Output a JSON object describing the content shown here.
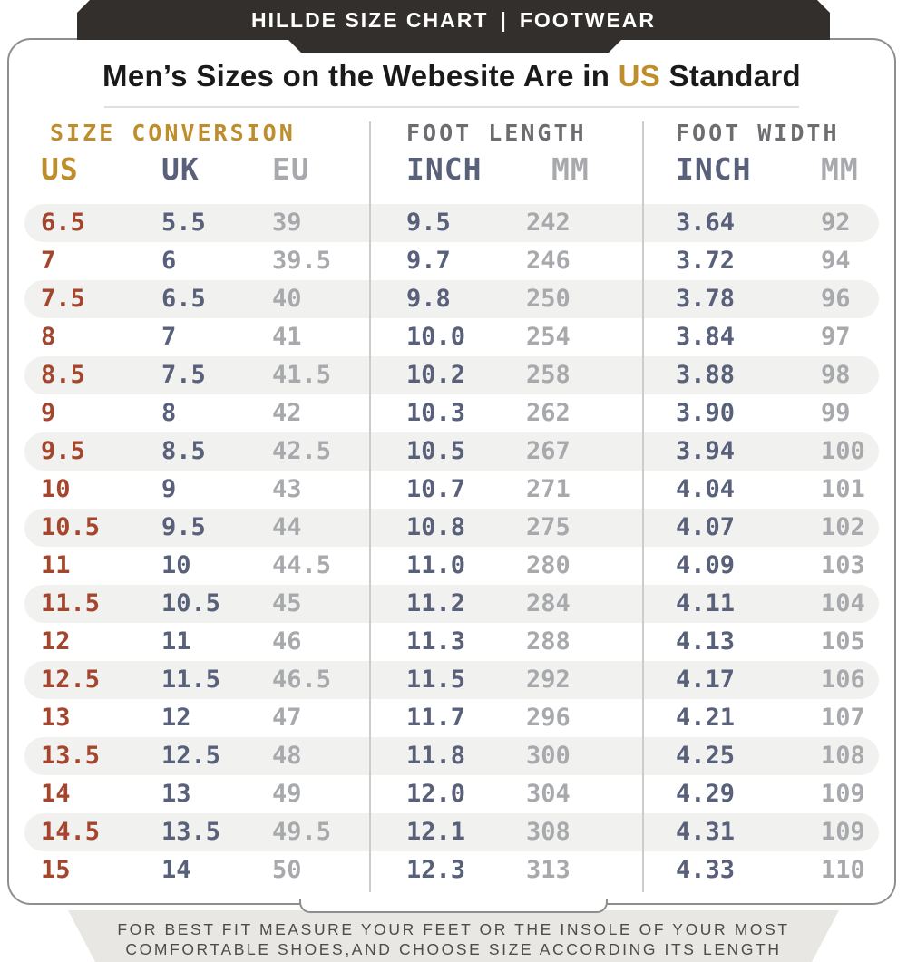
{
  "banner": {
    "title_left": "HILLDE SIZE CHART",
    "separator": "|",
    "title_right": "FOOTWEAR"
  },
  "heading": {
    "prefix": "Men’s Sizes on the Webesite Are in",
    "highlight": " US ",
    "suffix": "Standard"
  },
  "table": {
    "groups": [
      {
        "label": "SIZE CONVERSION"
      },
      {
        "label": "FOOT LENGTH"
      },
      {
        "label": "FOOT WIDTH"
      }
    ],
    "columns": [
      "US",
      "UK",
      "EU",
      "INCH",
      "MM",
      "INCH",
      "MM"
    ],
    "rows": [
      [
        "6.5",
        "5.5",
        "39",
        "9.5",
        "242",
        "3.64",
        "92"
      ],
      [
        "7",
        "6",
        "39.5",
        "9.7",
        "246",
        "3.72",
        "94"
      ],
      [
        "7.5",
        "6.5",
        "40",
        "9.8",
        "250",
        "3.78",
        "96"
      ],
      [
        "8",
        "7",
        "41",
        "10.0",
        "254",
        "3.84",
        "97"
      ],
      [
        "8.5",
        "7.5",
        "41.5",
        "10.2",
        "258",
        "3.88",
        "98"
      ],
      [
        "9",
        "8",
        "42",
        "10.3",
        "262",
        "3.90",
        "99"
      ],
      [
        "9.5",
        "8.5",
        "42.5",
        "10.5",
        "267",
        "3.94",
        "100"
      ],
      [
        "10",
        "9",
        "43",
        "10.7",
        "271",
        "4.04",
        "101"
      ],
      [
        "10.5",
        "9.5",
        "44",
        "10.8",
        "275",
        "4.07",
        "102"
      ],
      [
        "11",
        "10",
        "44.5",
        "11.0",
        "280",
        "4.09",
        "103"
      ],
      [
        "11.5",
        "10.5",
        "45",
        "11.2",
        "284",
        "4.11",
        "104"
      ],
      [
        "12",
        "11",
        "46",
        "11.3",
        "288",
        "4.13",
        "105"
      ],
      [
        "12.5",
        "11.5",
        "46.5",
        "11.5",
        "292",
        "4.17",
        "106"
      ],
      [
        "13",
        "12",
        "47",
        "11.7",
        "296",
        "4.21",
        "107"
      ],
      [
        "13.5",
        "12.5",
        "48",
        "11.8",
        "300",
        "4.25",
        "108"
      ],
      [
        "14",
        "13",
        "49",
        "12.0",
        "304",
        "4.29",
        "109"
      ],
      [
        "14.5",
        "13.5",
        "49.5",
        "12.1",
        "308",
        "4.31",
        "109"
      ],
      [
        "15",
        "14",
        "50",
        "12.3",
        "313",
        "4.33",
        "110"
      ]
    ]
  },
  "footer": {
    "line1": "FOR BEST FIT MEASURE YOUR FEET OR THE INSOLE OF YOUR MOST",
    "line2": "COMFORTABLE SHOES,AND CHOOSE SIZE ACCORDING ITS LENGTH"
  },
  "colors": {
    "banner_bg": "#332f2d",
    "accent_gold": "#bf8e2c",
    "us_red": "#a4462e",
    "blue_gray": "#59607a",
    "light_gray": "#a7a9ac",
    "group_gray": "#6b6d70",
    "stripe_bg": "#f1f1ef",
    "footer_bg": "#e8e7e3",
    "card_border": "#8e8e8c"
  }
}
